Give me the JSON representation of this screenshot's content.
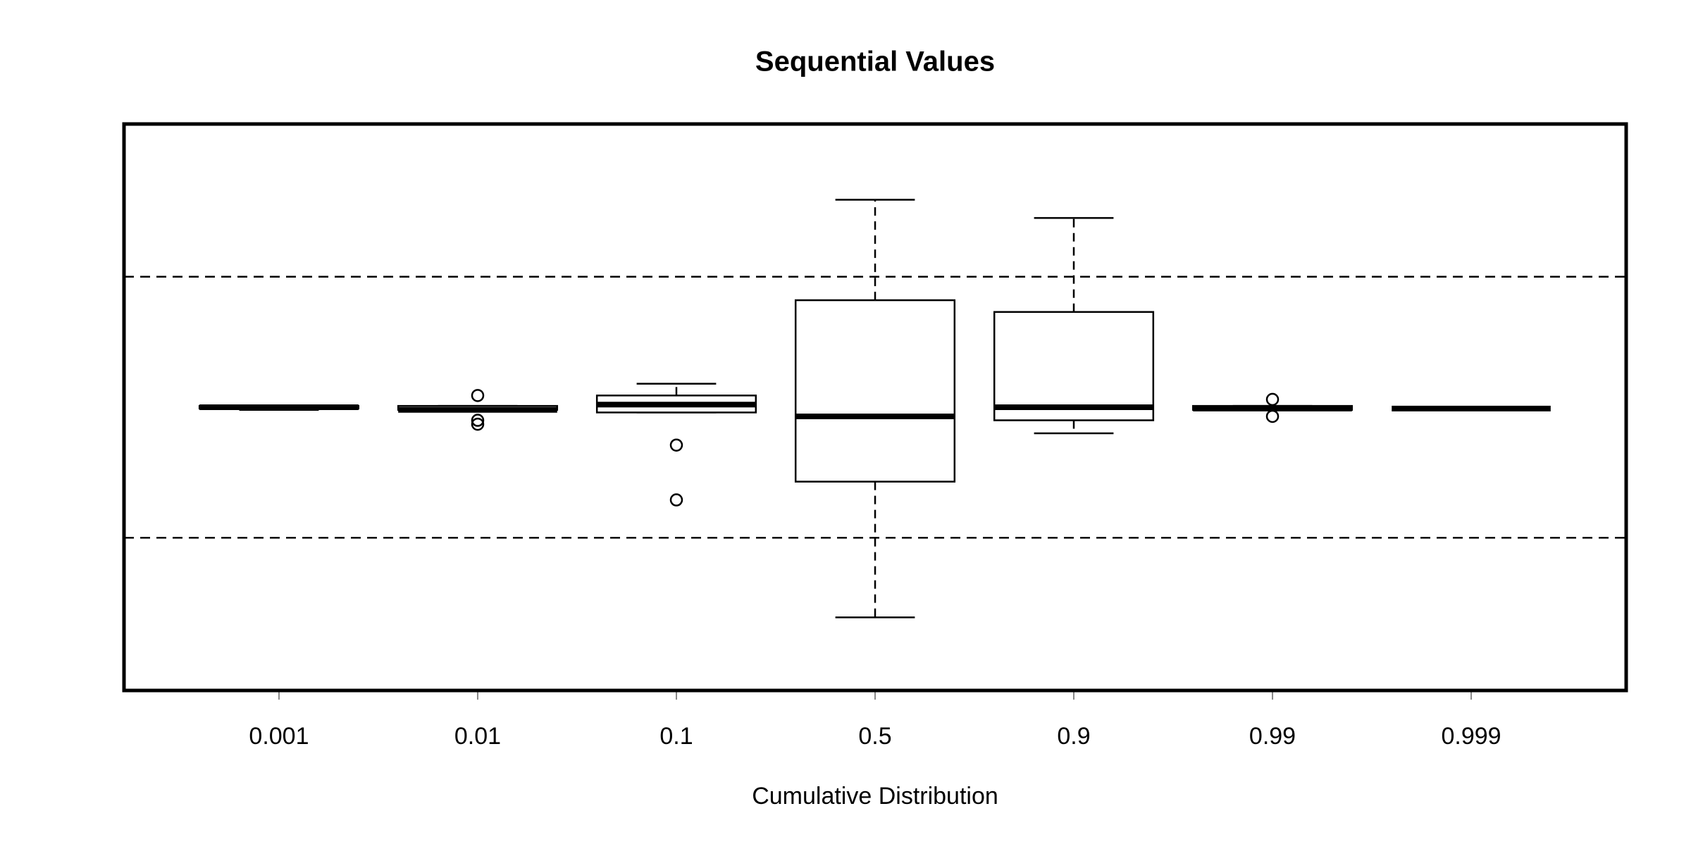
{
  "chart_data": {
    "type": "boxplot",
    "title": "Sequential Values",
    "x_label": "Cumulative Distribution",
    "categories": [
      "0.001",
      "0.01",
      "0.1",
      "0.5",
      "0.9",
      "0.99",
      "0.999"
    ],
    "boxes": [
      {
        "min": -0.02,
        "q1": -0.01,
        "median": 0.0,
        "q3": 0.01,
        "max": 0.01,
        "outliers": []
      },
      {
        "min": -0.03,
        "q1": -0.02,
        "median": -0.02,
        "q3": 0.01,
        "max": 0.01,
        "outliers": [
          0.09,
          -0.1,
          -0.13
        ]
      },
      {
        "min": -0.04,
        "q1": -0.04,
        "median": 0.02,
        "q3": 0.09,
        "max": 0.18,
        "outliers": [
          -0.29,
          -0.71
        ]
      },
      {
        "min": -1.61,
        "q1": -0.57,
        "median": -0.07,
        "q3": 0.82,
        "max": 1.59,
        "outliers": []
      },
      {
        "min": -0.2,
        "q1": -0.1,
        "median": 0.0,
        "q3": 0.73,
        "max": 1.45,
        "outliers": []
      },
      {
        "min": -0.02,
        "q1": -0.02,
        "median": -0.01,
        "q3": 0.01,
        "max": 0.01,
        "outliers": [
          0.06,
          -0.07
        ]
      },
      {
        "min": -0.01,
        "q1": -0.01,
        "median": -0.01,
        "q3": -0.01,
        "max": -0.01,
        "outliers": []
      }
    ],
    "ylim": [
      -2.17,
      2.17
    ],
    "reference_lines": [
      1,
      -1
    ],
    "color": "#000000"
  }
}
